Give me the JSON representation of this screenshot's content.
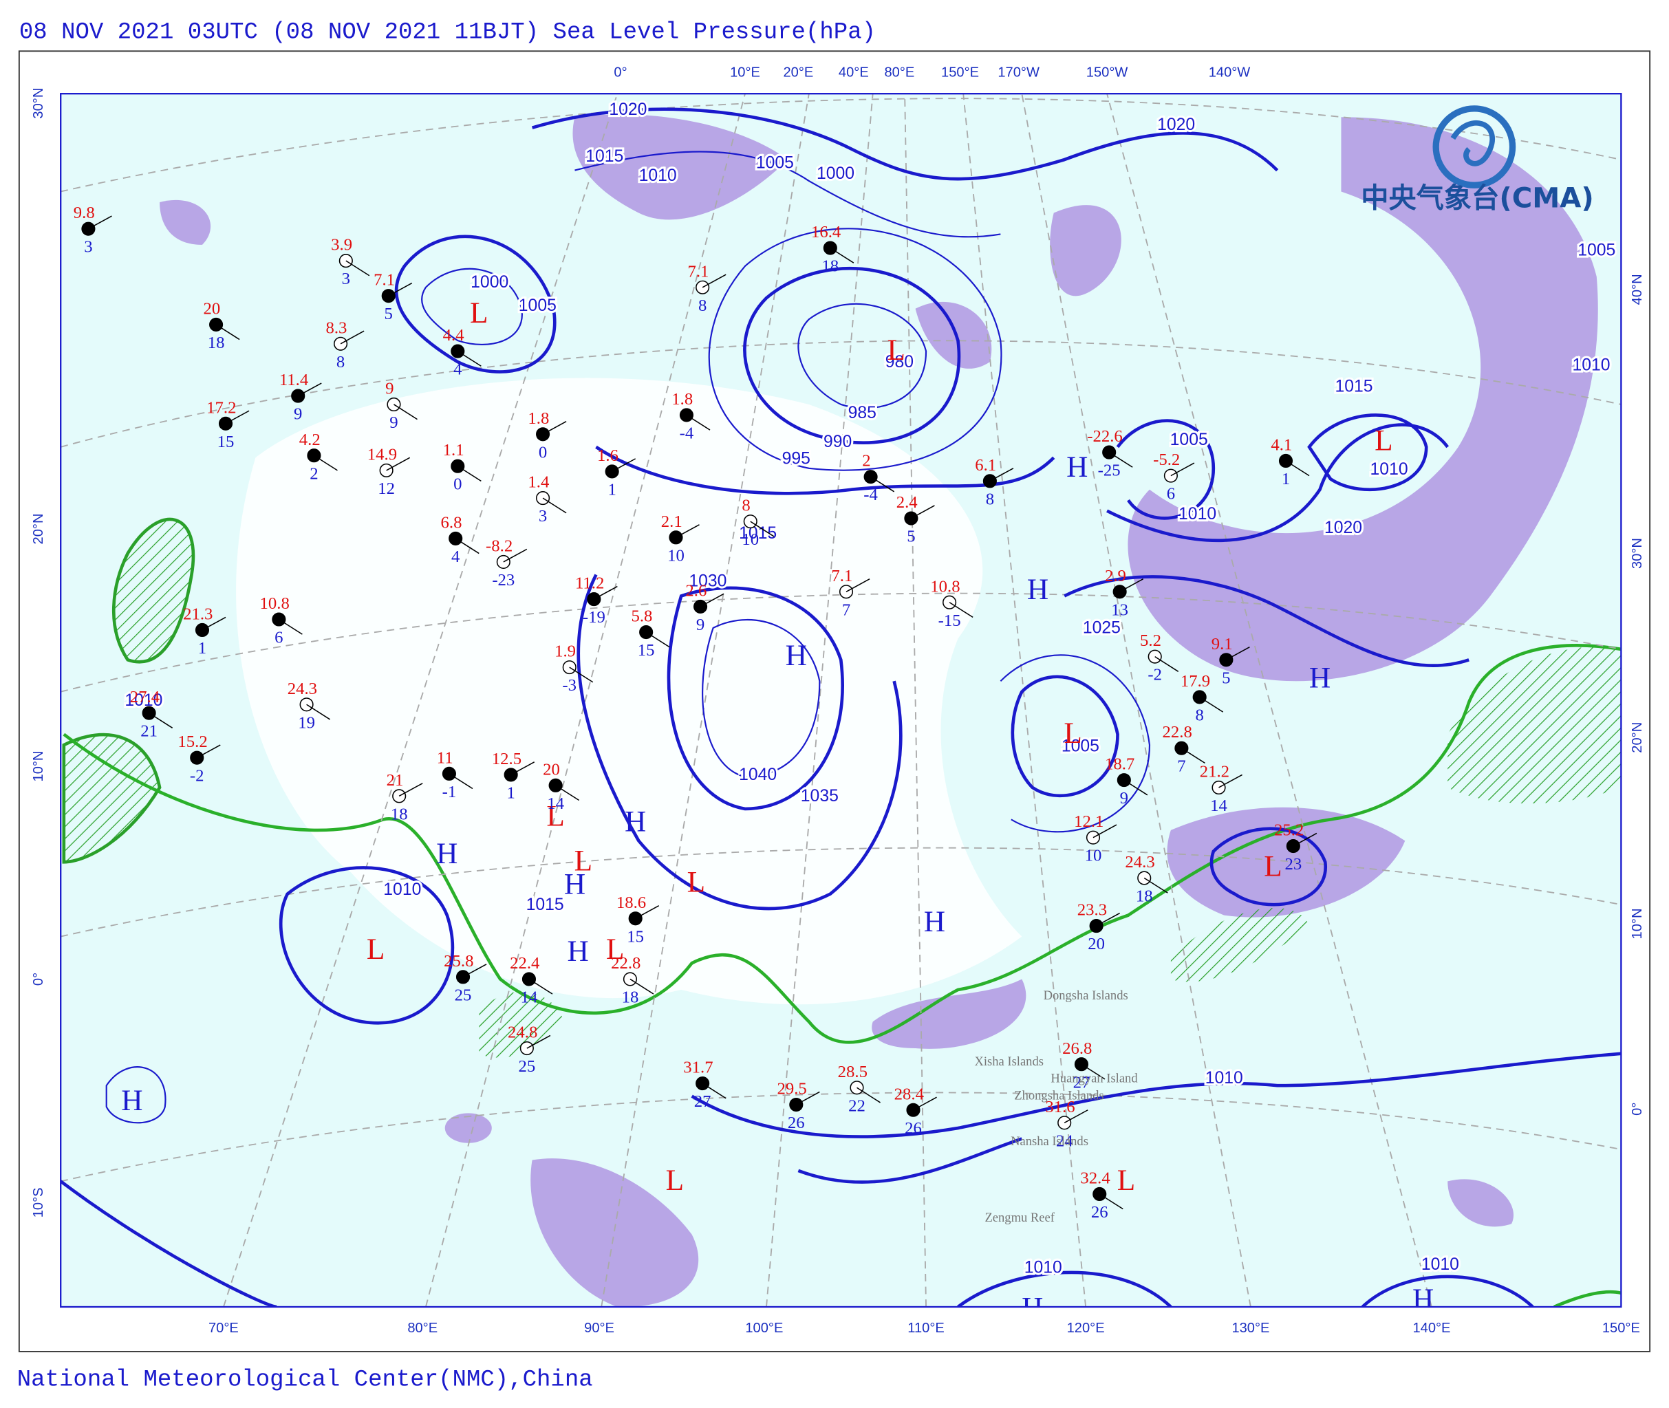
{
  "header": {
    "title": "08 NOV 2021 03UTC  (08 NOV 2021 11BJT) Sea Level Pressure(hPa)"
  },
  "footer": {
    "text": "National Meteorological Center(NMC),China"
  },
  "logo": {
    "text": "中央气象台(CMA)"
  },
  "axes": {
    "bottom": [
      "70°E",
      "80°E",
      "90°E",
      "100°E",
      "110°E",
      "120°E",
      "130°E",
      "140°E",
      "150°E"
    ],
    "top": [
      "0°",
      "10°E",
      "20°E",
      "40°E",
      "80°E",
      "150°E",
      "170°W",
      "150°W",
      "140°W"
    ],
    "left": [
      "30°N",
      "20°N",
      "10°N",
      "0°",
      "10°S"
    ],
    "right": [
      "40°N",
      "30°N",
      "20°N",
      "10°N",
      "0°"
    ]
  },
  "isobar_labels": [
    "1020",
    "1015",
    "1010",
    "1005",
    "1000",
    "1005",
    "1000",
    "1005",
    "980",
    "985",
    "990",
    "995",
    "1015",
    "1030",
    "1035",
    "1040",
    "1005",
    "1010",
    "1015",
    "1010",
    "1020",
    "1010",
    "1020",
    "1025",
    "1010",
    "1015",
    "1010",
    "1010",
    "1010",
    "1005",
    "1010"
  ],
  "pressure_centers": [
    "L",
    "L",
    "L",
    "H",
    "H",
    "H",
    "H",
    "L",
    "H",
    "L",
    "H",
    "L",
    "H",
    "L",
    "L",
    "H",
    "L",
    "H",
    "L",
    "H",
    "L",
    "L",
    "H",
    "H"
  ],
  "places": [
    "Xisha Islands",
    "Huangyan Island",
    "Zhongsha Islands",
    "Nansha Islands",
    "Zengmu Reef",
    "Dongsha Islands"
  ],
  "stations": [
    {
      "temperature": "9.8",
      "dewpoint": "3"
    },
    {
      "temperature": "3.9",
      "dewpoint": "3"
    },
    {
      "temperature": "7.1",
      "dewpoint": "5"
    },
    {
      "temperature": "20",
      "dewpoint": "18"
    },
    {
      "temperature": "8.3",
      "dewpoint": "8"
    },
    {
      "temperature": "4.4",
      "dewpoint": "4"
    },
    {
      "temperature": "11.4",
      "dewpoint": "9"
    },
    {
      "temperature": "9",
      "dewpoint": "9"
    },
    {
      "temperature": "17.2",
      "dewpoint": "15"
    },
    {
      "temperature": "4.2",
      "dewpoint": "2"
    },
    {
      "temperature": "14.9",
      "dewpoint": "12"
    },
    {
      "temperature": "1.1",
      "dewpoint": "0"
    },
    {
      "temperature": "1.8",
      "dewpoint": "0"
    },
    {
      "temperature": "1.4",
      "dewpoint": "3"
    },
    {
      "temperature": "1.6",
      "dewpoint": "1"
    },
    {
      "temperature": "6.8",
      "dewpoint": "4"
    },
    {
      "temperature": "-8.2",
      "dewpoint": "-23"
    },
    {
      "temperature": "10.8",
      "dewpoint": "6"
    },
    {
      "temperature": "21.3",
      "dewpoint": "1"
    },
    {
      "temperature": "24.3",
      "dewpoint": "19"
    },
    {
      "temperature": "15.2",
      "dewpoint": "-2"
    },
    {
      "temperature": "27.4",
      "dewpoint": "21"
    },
    {
      "temperature": "21",
      "dewpoint": "18"
    },
    {
      "temperature": "11",
      "dewpoint": "-1"
    },
    {
      "temperature": "12.5",
      "dewpoint": "1"
    },
    {
      "temperature": "1.9",
      "dewpoint": "-3"
    },
    {
      "temperature": "11.2",
      "dewpoint": "-19"
    },
    {
      "temperature": "5.8",
      "dewpoint": "15"
    },
    {
      "temperature": "7.1",
      "dewpoint": "8"
    },
    {
      "temperature": "1.8",
      "dewpoint": "-4"
    },
    {
      "temperature": "2.1",
      "dewpoint": "10"
    },
    {
      "temperature": "8",
      "dewpoint": "10"
    },
    {
      "temperature": "2.6",
      "dewpoint": "9"
    },
    {
      "temperature": "16.4",
      "dewpoint": "18"
    },
    {
      "temperature": "7.1",
      "dewpoint": "7"
    },
    {
      "temperature": "2",
      "dewpoint": "-4"
    },
    {
      "temperature": "2.4",
      "dewpoint": "5"
    },
    {
      "temperature": "10.8",
      "dewpoint": "-15"
    },
    {
      "temperature": "6.1",
      "dewpoint": "8"
    },
    {
      "temperature": "-22.6",
      "dewpoint": "-25"
    },
    {
      "temperature": "-5.2",
      "dewpoint": "6"
    },
    {
      "temperature": "4.1",
      "dewpoint": "1"
    },
    {
      "temperature": "2.9",
      "dewpoint": "13"
    },
    {
      "temperature": "5.2",
      "dewpoint": "-2"
    },
    {
      "temperature": "9.1",
      "dewpoint": "5"
    },
    {
      "temperature": "18.7",
      "dewpoint": "9"
    },
    {
      "temperature": "12.1",
      "dewpoint": "10"
    },
    {
      "temperature": "20",
      "dewpoint": "14"
    },
    {
      "temperature": "18.6",
      "dewpoint": "15"
    },
    {
      "temperature": "22.8",
      "dewpoint": "18"
    },
    {
      "temperature": "25.8",
      "dewpoint": "25"
    },
    {
      "temperature": "22.4",
      "dewpoint": "14"
    },
    {
      "temperature": "24.8",
      "dewpoint": "25"
    },
    {
      "temperature": "31.7",
      "dewpoint": "27"
    },
    {
      "temperature": "29.5",
      "dewpoint": "26"
    },
    {
      "temperature": "28.5",
      "dewpoint": "22"
    },
    {
      "temperature": "28.4",
      "dewpoint": "26"
    },
    {
      "temperature": "26.8",
      "dewpoint": "27"
    },
    {
      "temperature": "31.6",
      "dewpoint": "24"
    },
    {
      "temperature": "32.4",
      "dewpoint": "26"
    },
    {
      "temperature": "25.2",
      "dewpoint": "23"
    },
    {
      "temperature": "24.3",
      "dewpoint": "18"
    },
    {
      "temperature": "23.3",
      "dewpoint": "20"
    },
    {
      "temperature": "22.8",
      "dewpoint": "7"
    },
    {
      "temperature": "21.2",
      "dewpoint": "14"
    },
    {
      "temperature": "17.9",
      "dewpoint": "8"
    }
  ]
}
